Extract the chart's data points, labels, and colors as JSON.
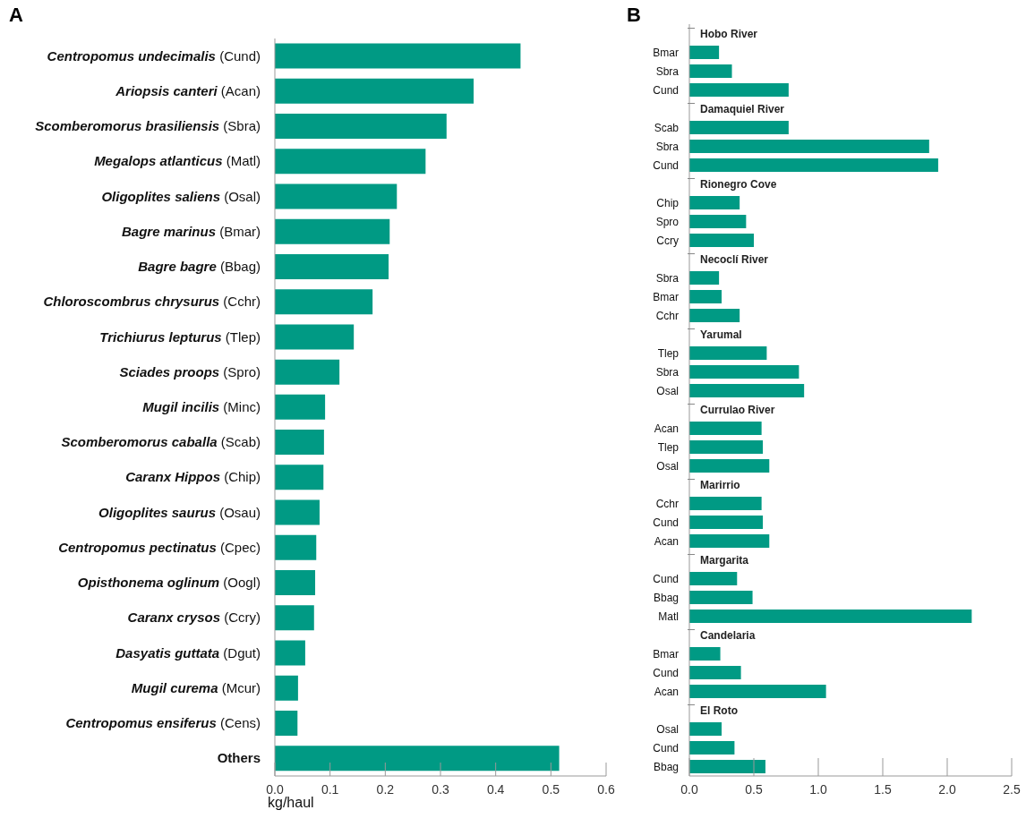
{
  "chart_data": [
    {
      "type": "bar",
      "title": "A",
      "orientation": "horizontal",
      "xlabel": "kg/haul",
      "color": "#009a84",
      "categories": [
        "Centropomus undecimalis (Cund)",
        "Ariopsis canteri (Acan)",
        "Scomberomorus brasiliensis (Sbra)",
        "Megalops atlanticus (Matl)",
        "Oligoplites saliens (Osal)",
        "Bagre marinus (Bmar)",
        "Bagre bagre (Bbag)",
        "Chloroscombrus chrysurus (Cchr)",
        "Trichiurus lepturus (Tlep)",
        "Sciades proops (Spro)",
        "Mugil incilis (Minc)",
        "Scomberomorus caballa (Scab)",
        "Caranx Hippos (Chip)",
        "Oligoplites saurus (Osau)",
        "Centropomus pectinatus (Cpec)",
        "Opisthonema oglinum (Oogl)",
        "Caranx crysos (Ccry)",
        "Dasyatis guttata (Dgut)",
        "Mugil curema (Mcur)",
        "Centropomus ensiferus (Cens)",
        "Others"
      ],
      "values": [
        0.445,
        0.36,
        0.311,
        0.273,
        0.221,
        0.208,
        0.206,
        0.177,
        0.143,
        0.117,
        0.091,
        0.089,
        0.088,
        0.081,
        0.075,
        0.073,
        0.071,
        0.055,
        0.042,
        0.041,
        0.515
      ],
      "xlim": [
        0,
        0.6
      ],
      "xticks": [
        {
          "value": 0,
          "label": "0.0"
        },
        0.1,
        0.2,
        0.3,
        0.4,
        0.5,
        0.6
      ]
    },
    {
      "type": "bar",
      "title": "B",
      "orientation": "horizontal",
      "color": "#009a84",
      "categories": [
        null,
        "Bmar",
        "Sbra",
        "Cund",
        null,
        "Scab",
        "Sbra",
        "Cund",
        null,
        "Chip",
        "Spro",
        "Ccry",
        null,
        "Sbra",
        "Bmar",
        "Cchr",
        null,
        "Tlep",
        "Sbra",
        "Osal",
        null,
        "Acan",
        "Tlep",
        "Osal",
        null,
        "Cchr",
        "Cund",
        "Acan",
        null,
        "Cund",
        "Bbag",
        "Matl",
        null,
        "Bmar",
        "Cund",
        "Acan",
        null,
        "Osal",
        "Cund",
        "Bbag"
      ],
      "values": [
        null,
        0.23,
        0.33,
        0.77,
        null,
        0.77,
        1.86,
        1.93,
        null,
        0.39,
        0.44,
        0.5,
        null,
        0.23,
        0.25,
        0.39,
        null,
        0.6,
        0.85,
        0.89,
        null,
        0.56,
        0.57,
        0.62,
        null,
        0.56,
        0.57,
        0.62,
        null,
        0.37,
        0.49,
        2.19,
        null,
        0.24,
        0.4,
        1.06,
        null,
        0.25,
        0.35,
        0.59
      ],
      "annotations": [
        "Hobo River",
        "Damaquiel River",
        "Rionegro Cove",
        "Necoclí River",
        "Yarumal",
        "Currulao River",
        "Marirrio",
        "Margarita",
        "Candelaria",
        "El Roto"
      ],
      "xlim": [
        0,
        2.5
      ],
      "xticks": [
        {
          "value": 0,
          "label": "0.0"
        },
        0.5,
        {
          "value": 1,
          "label": "1.0"
        },
        1.5,
        {
          "value": 2,
          "label": "2.0"
        },
        2.5
      ]
    }
  ]
}
